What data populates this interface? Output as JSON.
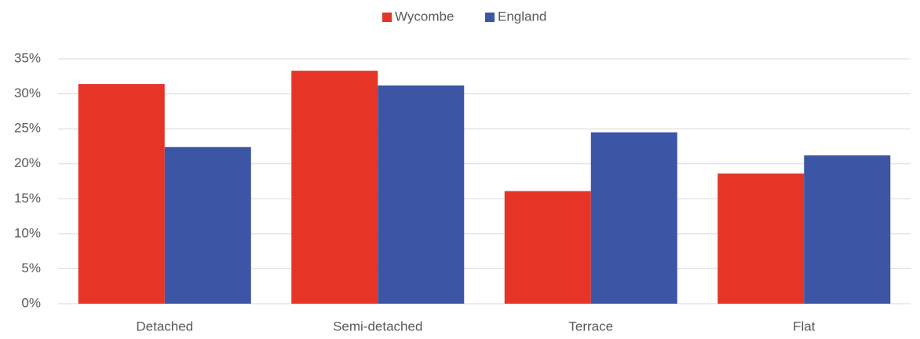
{
  "chart_data": {
    "type": "bar",
    "categories": [
      "Detached",
      "Semi-detached",
      "Terrace",
      "Flat"
    ],
    "series": [
      {
        "name": "Wycombe",
        "color": "#e63426",
        "values": [
          31.4,
          33.3,
          16.1,
          18.6
        ]
      },
      {
        "name": "England",
        "color": "#3c56a5",
        "values": [
          22.4,
          31.2,
          24.5,
          21.2
        ]
      }
    ],
    "ylim": [
      0,
      35
    ],
    "yticks": [
      {
        "value": 0,
        "label": "0%"
      },
      {
        "value": 5,
        "label": "5%"
      },
      {
        "value": 10,
        "label": "10%"
      },
      {
        "value": 15,
        "label": "15%"
      },
      {
        "value": 20,
        "label": "20%"
      },
      {
        "value": 25,
        "label": "25%"
      },
      {
        "value": 30,
        "label": "30%"
      },
      {
        "value": 35,
        "label": "35%"
      }
    ],
    "grid": true,
    "legend": "top"
  }
}
